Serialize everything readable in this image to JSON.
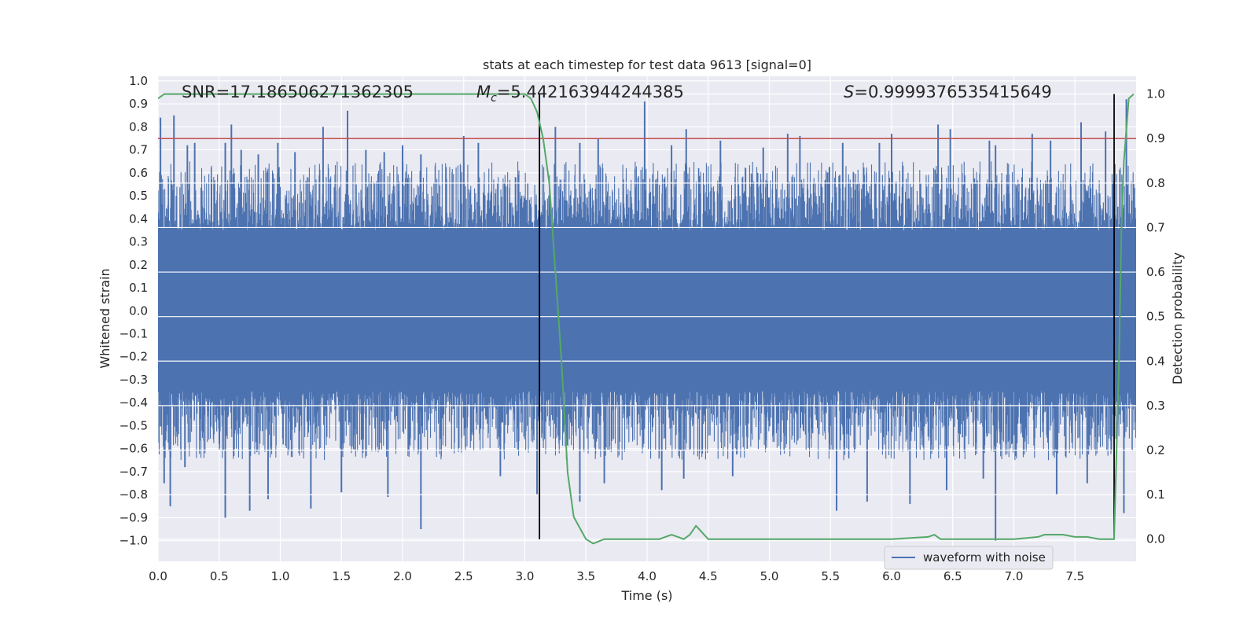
{
  "chart_data": {
    "type": "line",
    "title": "stats at each timestep for test data 9613 [signal=0]",
    "xlabel": "Time (s)",
    "ylabel": "Whitened strain",
    "y2label": "Detection probability",
    "xlim": [
      0.0,
      8.0
    ],
    "ylim": [
      -1.09,
      1.02
    ],
    "y2lim": [
      -0.05,
      1.04
    ],
    "x_ticks": [
      "0.0",
      "0.5",
      "1.0",
      "1.5",
      "2.0",
      "2.5",
      "3.0",
      "3.5",
      "4.0",
      "4.5",
      "5.0",
      "5.5",
      "6.0",
      "6.5",
      "7.0",
      "7.5"
    ],
    "y_ticks": [
      "1.0",
      "0.9",
      "0.8",
      "0.7",
      "0.6",
      "0.5",
      "0.4",
      "0.3",
      "0.2",
      "0.1",
      "0.0",
      "−0.1",
      "−0.2",
      "−0.3",
      "−0.4",
      "−0.5",
      "−0.6",
      "−0.7",
      "−0.8",
      "−0.9",
      "−1.0"
    ],
    "y2_ticks": [
      "1.0",
      "0.9",
      "0.8",
      "0.7",
      "0.6",
      "0.5",
      "0.4",
      "0.3",
      "0.2",
      "0.1",
      "0.0"
    ],
    "annotations": {
      "snr": "SNR=17.186506271362305",
      "mc_symbol": "M",
      "mc_subscript": "c",
      "mc_value": "=5.442163944244385",
      "s_symbol": "S",
      "s_value": "=0.9999376535415649"
    },
    "threshold": {
      "value": 0.9,
      "axis": "detection probability",
      "color": "#c44e52"
    },
    "markers": [
      3.12,
      7.82
    ],
    "series": [
      {
        "name": "waveform with noise",
        "axis": "left",
        "color": "#4c72b0",
        "core_amplitude": 0.35,
        "spike_peaks_pos": [
          [
            0.02,
            0.84
          ],
          [
            0.13,
            0.85
          ],
          [
            0.24,
            0.72
          ],
          [
            0.3,
            0.73
          ],
          [
            0.55,
            0.73
          ],
          [
            0.6,
            0.81
          ],
          [
            0.68,
            0.7
          ],
          [
            0.82,
            0.68
          ],
          [
            0.98,
            0.73
          ],
          [
            1.12,
            0.69
          ],
          [
            1.35,
            0.8
          ],
          [
            1.55,
            0.87
          ],
          [
            1.7,
            0.7
          ],
          [
            1.85,
            0.69
          ],
          [
            2.0,
            0.72
          ],
          [
            2.15,
            0.68
          ],
          [
            2.5,
            0.76
          ],
          [
            2.62,
            0.73
          ],
          [
            3.25,
            0.8
          ],
          [
            3.45,
            0.73
          ],
          [
            3.6,
            0.75
          ],
          [
            3.98,
            0.91
          ],
          [
            4.2,
            0.72
          ],
          [
            4.32,
            0.79
          ],
          [
            4.6,
            0.74
          ],
          [
            4.95,
            0.71
          ],
          [
            5.15,
            0.77
          ],
          [
            5.25,
            0.76
          ],
          [
            5.6,
            0.73
          ],
          [
            5.9,
            0.73
          ],
          [
            6.0,
            0.77
          ],
          [
            6.38,
            0.81
          ],
          [
            6.48,
            0.79
          ],
          [
            6.8,
            0.74
          ],
          [
            6.85,
            0.72
          ],
          [
            7.15,
            0.77
          ],
          [
            7.3,
            0.74
          ],
          [
            7.55,
            0.82
          ],
          [
            7.75,
            0.78
          ],
          [
            7.92,
            0.92
          ]
        ],
        "spike_peaks_neg": [
          [
            0.05,
            -0.75
          ],
          [
            0.1,
            -0.85
          ],
          [
            0.22,
            -0.68
          ],
          [
            0.55,
            -0.9
          ],
          [
            0.75,
            -0.87
          ],
          [
            0.9,
            -0.82
          ],
          [
            1.25,
            -0.86
          ],
          [
            1.5,
            -0.79
          ],
          [
            1.88,
            -0.81
          ],
          [
            2.15,
            -0.95
          ],
          [
            2.8,
            -0.72
          ],
          [
            3.1,
            -0.8
          ],
          [
            3.45,
            -0.83
          ],
          [
            3.65,
            -0.75
          ],
          [
            4.12,
            -0.78
          ],
          [
            4.3,
            -0.73
          ],
          [
            4.7,
            -0.72
          ],
          [
            5.55,
            -0.87
          ],
          [
            5.8,
            -0.83
          ],
          [
            6.15,
            -0.84
          ],
          [
            6.45,
            -0.78
          ],
          [
            6.75,
            -0.73
          ],
          [
            6.85,
            -1.0
          ],
          [
            7.35,
            -0.8
          ],
          [
            7.6,
            -0.75
          ],
          [
            7.9,
            -0.88
          ]
        ]
      },
      {
        "name": "detection probability",
        "axis": "right",
        "color": "#55a868",
        "x": [
          0.0,
          0.05,
          0.1,
          0.2,
          0.5,
          1.0,
          1.5,
          2.0,
          2.5,
          2.9,
          3.0,
          3.05,
          3.1,
          3.15,
          3.2,
          3.25,
          3.3,
          3.35,
          3.4,
          3.5,
          3.56,
          3.65,
          3.75,
          3.9,
          4.0,
          4.1,
          4.2,
          4.25,
          4.3,
          4.35,
          4.4,
          4.5,
          4.7,
          5.0,
          5.5,
          6.0,
          6.3,
          6.35,
          6.4,
          6.45,
          6.5,
          7.0,
          7.2,
          7.25,
          7.3,
          7.4,
          7.5,
          7.6,
          7.7,
          7.82,
          7.84,
          7.86,
          7.88,
          7.9,
          7.94,
          7.98
        ],
        "y": [
          0.99,
          1.0,
          1.0,
          1.0,
          1.0,
          1.0,
          1.0,
          1.0,
          1.0,
          1.0,
          1.0,
          0.99,
          0.96,
          0.9,
          0.8,
          0.6,
          0.4,
          0.15,
          0.05,
          0.0,
          -0.01,
          0.0,
          0.0,
          0.0,
          0.0,
          0.0,
          0.01,
          0.005,
          0.0,
          0.01,
          0.03,
          0.0,
          0.0,
          0.0,
          0.0,
          0.0,
          0.005,
          0.01,
          0.0,
          0.0,
          0.0,
          0.0,
          0.005,
          0.01,
          0.01,
          0.01,
          0.005,
          0.005,
          0.0,
          0.0,
          0.2,
          0.4,
          0.7,
          0.85,
          0.99,
          1.0
        ]
      }
    ],
    "legend": {
      "position": "lower right",
      "label": "waveform with noise"
    }
  }
}
